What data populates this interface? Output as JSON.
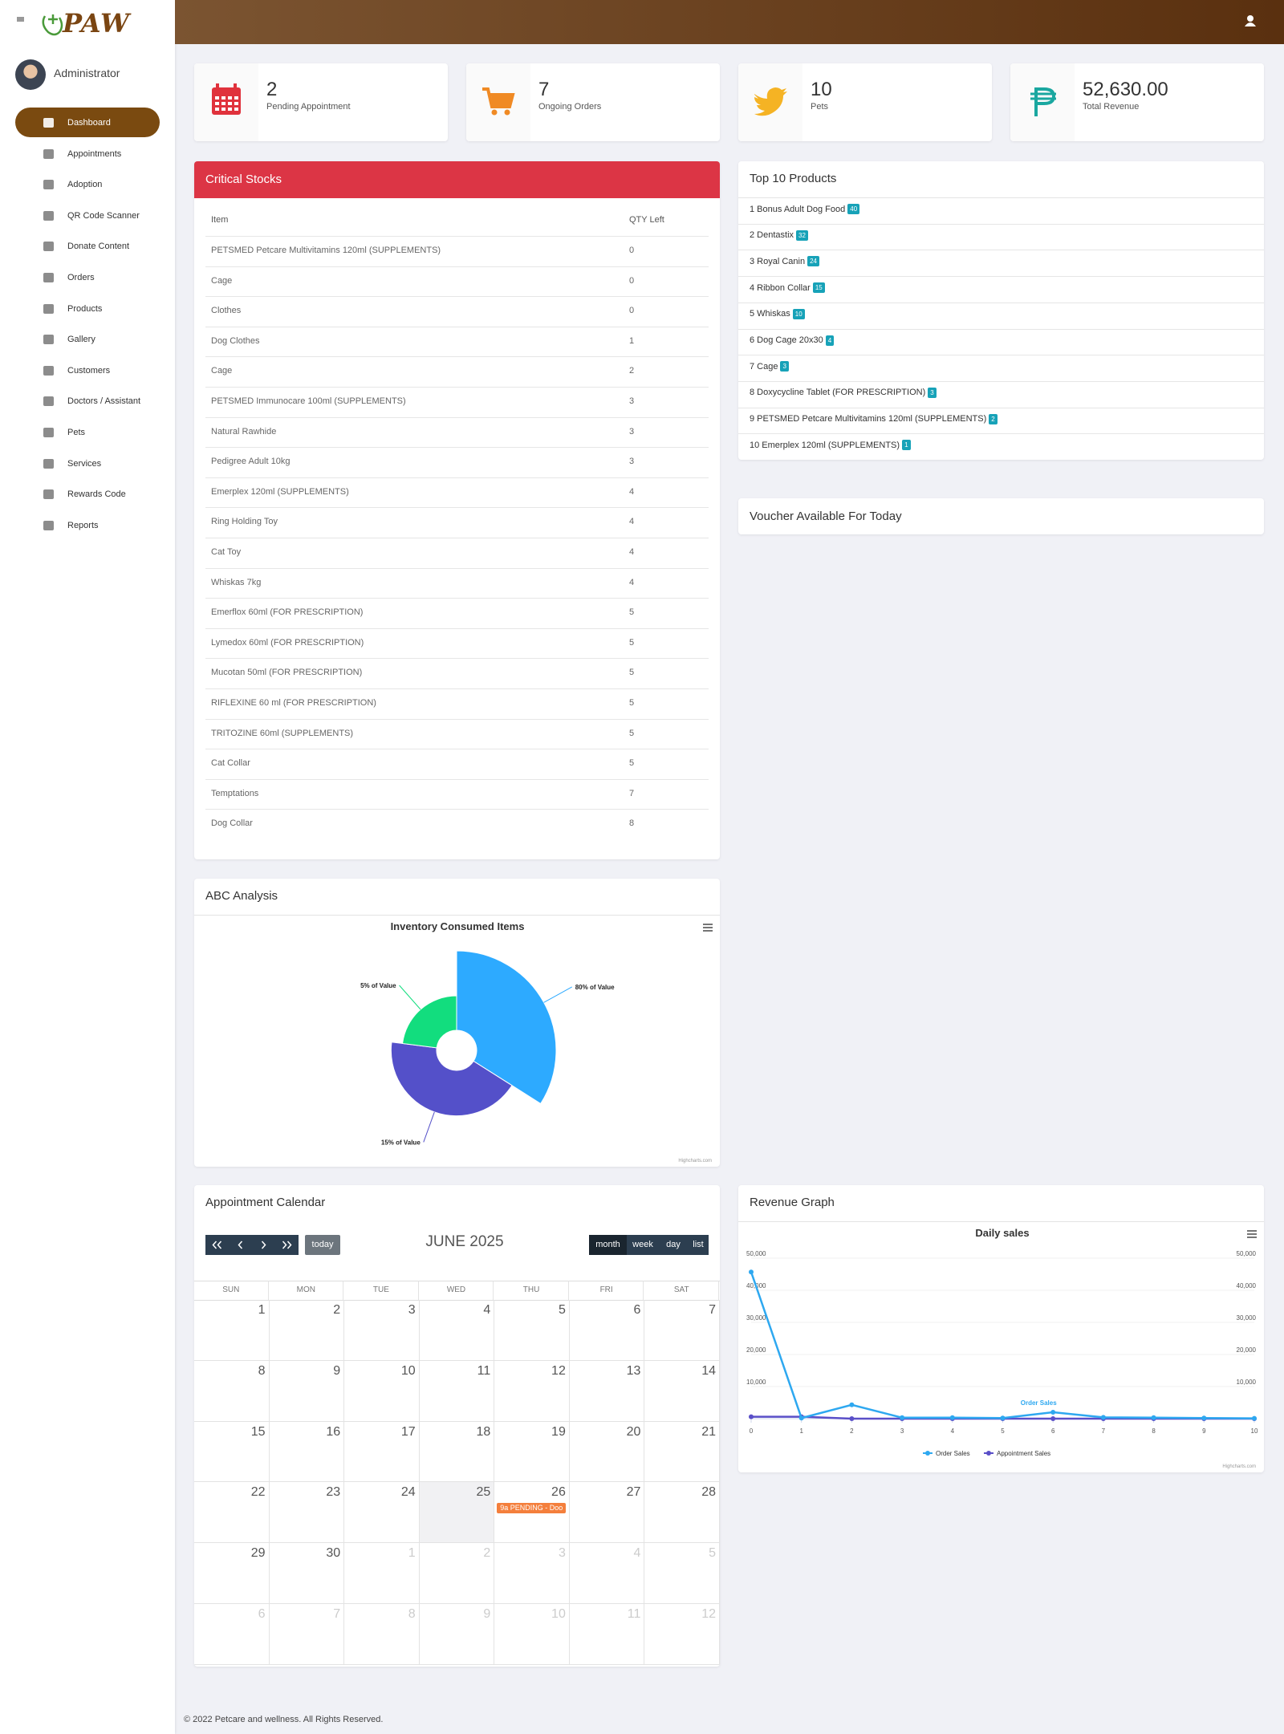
{
  "header": {
    "logo": "PAW",
    "user": "Administrator"
  },
  "nav": [
    "Dashboard",
    "Appointments",
    "Adoption",
    "QR Code Scanner",
    "Donate Content",
    "Orders",
    "Products",
    "Gallery",
    "Customers",
    "Doctors / Assistant",
    "Pets",
    "Services",
    "Rewards Code",
    "Reports"
  ],
  "stats": [
    {
      "value": "2",
      "label": "Pending Appointment"
    },
    {
      "value": "7",
      "label": "Ongoing Orders"
    },
    {
      "value": "10",
      "label": "Pets"
    },
    {
      "value": "52,630.00",
      "label": "Total Revenue"
    }
  ],
  "critical_stocks": {
    "title": "Critical Stocks",
    "columns": [
      "Item",
      "QTY Left"
    ],
    "rows": [
      [
        "PETSMED Petcare Multivitamins 120ml (SUPPLEMENTS)",
        0
      ],
      [
        "Cage",
        0
      ],
      [
        "Clothes",
        0
      ],
      [
        "Dog Clothes",
        1
      ],
      [
        "Cage",
        2
      ],
      [
        "PETSMED Immunocare 100ml (SUPPLEMENTS)",
        3
      ],
      [
        "Natural Rawhide",
        3
      ],
      [
        "Pedigree Adult 10kg",
        3
      ],
      [
        "Emerplex 120ml (SUPPLEMENTS)",
        4
      ],
      [
        "Ring Holding Toy",
        4
      ],
      [
        "Cat Toy",
        4
      ],
      [
        "Whiskas 7kg",
        4
      ],
      [
        "Emerflox 60ml (FOR PRESCRIPTION)",
        5
      ],
      [
        "Lymedox 60ml (FOR PRESCRIPTION)",
        5
      ],
      [
        "Mucotan 50ml (FOR PRESCRIPTION)",
        5
      ],
      [
        "RIFLEXINE 60 ml (FOR PRESCRIPTION)",
        5
      ],
      [
        "TRITOZINE 60ml (SUPPLEMENTS)",
        5
      ],
      [
        "Cat Collar",
        5
      ],
      [
        "Temptations",
        7
      ],
      [
        "Dog Collar",
        8
      ]
    ]
  },
  "top_products": {
    "title": "Top 10 Products",
    "items": [
      {
        "name": "1 Bonus Adult Dog Food",
        "count": 40
      },
      {
        "name": "2 Dentastix",
        "count": 32
      },
      {
        "name": "3 Royal Canin",
        "count": 24
      },
      {
        "name": "4 Ribbon Collar",
        "count": 15
      },
      {
        "name": "5 Whiskas",
        "count": 10
      },
      {
        "name": "6 Dog Cage 20x30",
        "count": 4
      },
      {
        "name": "7 Cage",
        "count": 3
      },
      {
        "name": "8 Doxycycline Tablet (FOR PRESCRIPTION)",
        "count": 3
      },
      {
        "name": "9 PETSMED Petcare Multivitamins 120ml (SUPPLEMENTS)",
        "count": 2
      },
      {
        "name": "10 Emerplex 120ml (SUPPLEMENTS)",
        "count": 1
      }
    ]
  },
  "voucher": {
    "title": "Voucher Available For Today"
  },
  "abc_analysis": {
    "title": "ABC Analysis"
  },
  "revenue": {
    "title": "Revenue Graph"
  },
  "calendar": {
    "title": "Appointment Calendar",
    "month": "JUNE 2025",
    "today": "today",
    "views": [
      "month",
      "week",
      "day",
      "list"
    ],
    "weekdays": [
      "SUN",
      "MON",
      "TUE",
      "WED",
      "THU",
      "FRI",
      "SAT"
    ],
    "weeks": [
      [
        1,
        2,
        3,
        4,
        5,
        6,
        7
      ],
      [
        8,
        9,
        10,
        11,
        12,
        13,
        14
      ],
      [
        15,
        16,
        17,
        18,
        19,
        20,
        21
      ],
      [
        22,
        23,
        24,
        25,
        26,
        27,
        28
      ],
      [
        29,
        30,
        1,
        2,
        3,
        4,
        5
      ],
      [
        6,
        7,
        8,
        9,
        10,
        11,
        12
      ]
    ],
    "event": {
      "week": 3,
      "day": 4,
      "text": "9a PENDING - Doo"
    }
  },
  "footer": "© 2022 Petcare and wellness. All Rights Reserved.",
  "chart_data": [
    {
      "type": "pie",
      "title": "Inventory Consumed Items",
      "categories": [
        "80% of Value",
        "15% of Value",
        "5% of Value"
      ],
      "values": [
        34,
        43,
        23
      ],
      "z": [
        80,
        15,
        5
      ],
      "colors": [
        "#2daaff",
        "#5450c9",
        "#12dd7e"
      ],
      "credits": "Highcharts.com"
    },
    {
      "type": "line",
      "title": "Daily sales",
      "x": [
        0,
        1,
        2,
        3,
        4,
        5,
        6,
        7,
        8,
        9,
        10
      ],
      "xlim": [
        0,
        10
      ],
      "xticks": [
        0,
        1,
        2,
        3,
        4,
        5,
        6,
        7,
        8,
        9,
        10
      ],
      "ylim": [
        0,
        50000
      ],
      "yticks": [
        {
          "value": 10000,
          "label": "10,000"
        },
        {
          "value": 20000,
          "label": "20,000"
        },
        {
          "value": 30000,
          "label": "30,000"
        },
        {
          "value": 40000,
          "label": "40,000"
        },
        {
          "value": 50000,
          "label": "50,000"
        }
      ],
      "series": [
        {
          "name": "Order Sales",
          "color": "#2ea8f0",
          "values": [
            45700,
            200,
            4300,
            300,
            300,
            200,
            2000,
            400,
            300,
            200,
            100
          ]
        },
        {
          "name": "Appointment Sales",
          "color": "#5a4fc8",
          "values": [
            600,
            600,
            0,
            0,
            0,
            0,
            0,
            0,
            0,
            0,
            0
          ]
        }
      ],
      "credits": "Highcharts.com"
    }
  ]
}
